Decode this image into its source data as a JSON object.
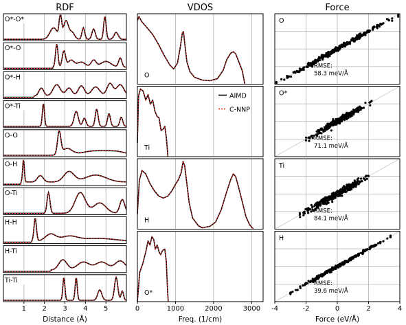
{
  "colors": {
    "aimd": "#000000",
    "cnnp": "#e8231b",
    "grid": "#b0b0b0",
    "axis": "#000000",
    "scatter": "#000000",
    "diag": "#c8c8c8"
  },
  "chart_data": [
    {
      "type": "line",
      "title": "RDF",
      "xlabel": "Distance (Å)",
      "xlim": [
        0,
        6
      ],
      "xticks": [
        1,
        2,
        3,
        4,
        5
      ],
      "grid": true,
      "panels": [
        {
          "label": "O*-O*",
          "peaks": [
            [
              2.45,
              0.18,
              0.5
            ],
            [
              2.78,
              0.06,
              1.0
            ],
            [
              3.05,
              0.12,
              0.8
            ],
            [
              3.35,
              0.12,
              0.3
            ],
            [
              3.9,
              0.07,
              0.5
            ],
            [
              4.4,
              0.08,
              0.45
            ],
            [
              4.95,
              0.06,
              1.0
            ],
            [
              5.5,
              0.1,
              0.3
            ]
          ],
          "base": 0.0
        },
        {
          "label": "O*-O",
          "peaks": [
            [
              2.6,
              0.06,
              1.0
            ],
            [
              2.95,
              0.08,
              0.7
            ],
            [
              3.3,
              0.15,
              0.3
            ],
            [
              3.8,
              0.2,
              0.22
            ],
            [
              4.4,
              0.12,
              0.3
            ],
            [
              5.0,
              0.25,
              0.25
            ],
            [
              5.7,
              0.08,
              0.4
            ]
          ],
          "base": 0.05
        },
        {
          "label": "O*-H",
          "peaks": [
            [
              1.85,
              0.12,
              0.35
            ],
            [
              2.6,
              0.18,
              0.5
            ],
            [
              3.2,
              0.15,
              0.35
            ],
            [
              3.8,
              0.15,
              0.45
            ],
            [
              4.5,
              0.2,
              0.4
            ],
            [
              5.2,
              0.15,
              0.55
            ],
            [
              5.7,
              0.18,
              0.5
            ]
          ],
          "base": 0.05
        },
        {
          "label": "O*-Ti",
          "peaks": [
            [
              1.95,
              0.05,
              1.0
            ],
            [
              3.55,
              0.1,
              0.65
            ],
            [
              3.95,
              0.08,
              0.35
            ],
            [
              4.55,
              0.07,
              0.75
            ],
            [
              5.15,
              0.07,
              0.55
            ],
            [
              5.75,
              0.07,
              0.4
            ]
          ],
          "base": 0.0
        },
        {
          "label": "O-O",
          "peaks": [
            [
              2.72,
              0.08,
              1.0
            ],
            [
              3.1,
              0.25,
              0.28
            ],
            [
              4.4,
              0.6,
              0.18
            ],
            [
              5.5,
              0.5,
              0.15
            ]
          ],
          "base": 0.0
        },
        {
          "label": "O-H",
          "peaks": [
            [
              0.98,
              0.04,
              1.0
            ],
            [
              1.8,
              0.14,
              0.28
            ],
            [
              3.2,
              0.25,
              0.45
            ],
            [
              4.5,
              0.5,
              0.3
            ]
          ],
          "base": 0.1
        },
        {
          "label": "O-Ti",
          "peaks": [
            [
              2.2,
              0.07,
              0.9
            ],
            [
              3.75,
              0.25,
              0.9
            ],
            [
              4.7,
              0.3,
              0.45
            ],
            [
              5.8,
              0.12,
              0.6
            ]
          ],
          "base": 0.0
        },
        {
          "label": "H-H",
          "peaks": [
            [
              1.55,
              0.06,
              1.0
            ],
            [
              2.3,
              0.25,
              0.3
            ],
            [
              3.2,
              0.4,
              0.2
            ],
            [
              4.6,
              0.8,
              0.12
            ]
          ],
          "base": 0.05
        },
        {
          "label": "H-Ti",
          "peaks": [
            [
              2.9,
              0.2,
              0.45
            ],
            [
              3.9,
              0.3,
              0.35
            ],
            [
              4.8,
              0.3,
              0.35
            ],
            [
              5.7,
              0.25,
              0.4
            ]
          ],
          "base": 0.05
        },
        {
          "label": "Ti-Ti",
          "peaks": [
            [
              2.95,
              0.05,
              1.0
            ],
            [
              3.55,
              0.05,
              1.0
            ],
            [
              4.7,
              0.1,
              0.45
            ],
            [
              5.5,
              0.08,
              1.0
            ],
            [
              5.8,
              0.06,
              0.4
            ]
          ],
          "base": 0.0
        }
      ]
    },
    {
      "type": "line",
      "title": "VDOS",
      "xlabel": "Freq. (1/cm)",
      "xlim": [
        0,
        3300
      ],
      "xticks": [
        0,
        1000,
        2000,
        3000
      ],
      "grid": true,
      "legend": {
        "position": "inside-right",
        "entries": [
          "AIMD",
          "C-NNP"
        ]
      },
      "panels": [
        {
          "label": "O",
          "points": [
            [
              0,
              0.92
            ],
            [
              40,
              0.98
            ],
            [
              120,
              0.9
            ],
            [
              250,
              0.82
            ],
            [
              400,
              0.72
            ],
            [
              550,
              0.58
            ],
            [
              700,
              0.42
            ],
            [
              850,
              0.28
            ],
            [
              950,
              0.22
            ],
            [
              1050,
              0.3
            ],
            [
              1130,
              0.55
            ],
            [
              1180,
              0.74
            ],
            [
              1210,
              0.76
            ],
            [
              1240,
              0.6
            ],
            [
              1300,
              0.32
            ],
            [
              1380,
              0.18
            ],
            [
              1500,
              0.1
            ],
            [
              1700,
              0.06
            ],
            [
              1900,
              0.05
            ],
            [
              2100,
              0.08
            ],
            [
              2250,
              0.2
            ],
            [
              2350,
              0.36
            ],
            [
              2450,
              0.45
            ],
            [
              2520,
              0.47
            ],
            [
              2580,
              0.44
            ],
            [
              2650,
              0.34
            ],
            [
              2750,
              0.2
            ],
            [
              2800,
              0.06
            ],
            [
              2820,
              0.0
            ]
          ],
          "xmax": 2820
        },
        {
          "label": "Ti",
          "points": [
            [
              0,
              0.2
            ],
            [
              30,
              0.88
            ],
            [
              80,
              0.98
            ],
            [
              150,
              0.95
            ],
            [
              220,
              0.82
            ],
            [
              280,
              0.9
            ],
            [
              340,
              0.76
            ],
            [
              400,
              0.82
            ],
            [
              460,
              0.66
            ],
            [
              520,
              0.58
            ],
            [
              570,
              0.56
            ],
            [
              620,
              0.38
            ],
            [
              680,
              0.4
            ],
            [
              720,
              0.44
            ],
            [
              760,
              0.28
            ],
            [
              790,
              0.08
            ],
            [
              800,
              0.0
            ]
          ],
          "xmax": 800
        },
        {
          "label": "H",
          "points": [
            [
              0,
              0.22
            ],
            [
              50,
              0.7
            ],
            [
              120,
              0.85
            ],
            [
              220,
              0.8
            ],
            [
              330,
              0.66
            ],
            [
              450,
              0.55
            ],
            [
              560,
              0.48
            ],
            [
              680,
              0.45
            ],
            [
              800,
              0.48
            ],
            [
              900,
              0.55
            ],
            [
              1000,
              0.65
            ],
            [
              1080,
              0.72
            ],
            [
              1150,
              0.82
            ],
            [
              1200,
              0.98
            ],
            [
              1240,
              0.92
            ],
            [
              1290,
              0.7
            ],
            [
              1360,
              0.38
            ],
            [
              1450,
              0.16
            ],
            [
              1600,
              0.05
            ],
            [
              1700,
              0.02
            ],
            [
              1900,
              0.04
            ],
            [
              2050,
              0.1
            ],
            [
              2200,
              0.28
            ],
            [
              2350,
              0.55
            ],
            [
              2450,
              0.72
            ],
            [
              2520,
              0.8
            ],
            [
              2580,
              0.76
            ],
            [
              2660,
              0.6
            ],
            [
              2760,
              0.38
            ],
            [
              2850,
              0.18
            ],
            [
              2950,
              0.06
            ],
            [
              3050,
              0.0
            ]
          ],
          "xmax": 3050
        },
        {
          "label": "O*",
          "points": [
            [
              0,
              0.0
            ],
            [
              60,
              0.42
            ],
            [
              140,
              0.55
            ],
            [
              220,
              0.72
            ],
            [
              280,
              0.88
            ],
            [
              330,
              0.82
            ],
            [
              380,
              0.94
            ],
            [
              430,
              0.9
            ],
            [
              470,
              0.76
            ],
            [
              520,
              0.82
            ],
            [
              570,
              0.72
            ],
            [
              610,
              0.68
            ],
            [
              660,
              0.74
            ],
            [
              720,
              0.76
            ],
            [
              760,
              0.58
            ],
            [
              790,
              0.18
            ],
            [
              810,
              0.0
            ]
          ],
          "xmax": 810
        }
      ]
    },
    {
      "type": "scatter",
      "title": "Force",
      "xlabel": "Force (eV/Å)",
      "xlim": [
        -4,
        4
      ],
      "ylim": [
        -4,
        4
      ],
      "xticks": [
        -4,
        -2,
        0,
        2,
        4
      ],
      "grid": true,
      "panels": [
        {
          "label": "O",
          "rmse_label": "RMSE:",
          "rmse_value": "58.3 meV/Å",
          "range": [
            -3.9,
            3.9
          ],
          "spread": 0.12,
          "n": 320
        },
        {
          "label": "O*",
          "rmse_label": "RMSE:",
          "rmse_value": "71.1 meV/Å",
          "range": [
            -2.0,
            2.2
          ],
          "spread": 0.16,
          "n": 320
        },
        {
          "label": "Ti",
          "rmse_label": "RMSE:",
          "rmse_value": "84.1 meV/Å",
          "range": [
            -2.4,
            2.1
          ],
          "spread": 0.2,
          "n": 320
        },
        {
          "label": "H",
          "rmse_label": "RMSE:",
          "rmse_value": "39.6 meV/Å",
          "range": [
            -3.0,
            3.4
          ],
          "spread": 0.08,
          "n": 320
        }
      ]
    }
  ]
}
